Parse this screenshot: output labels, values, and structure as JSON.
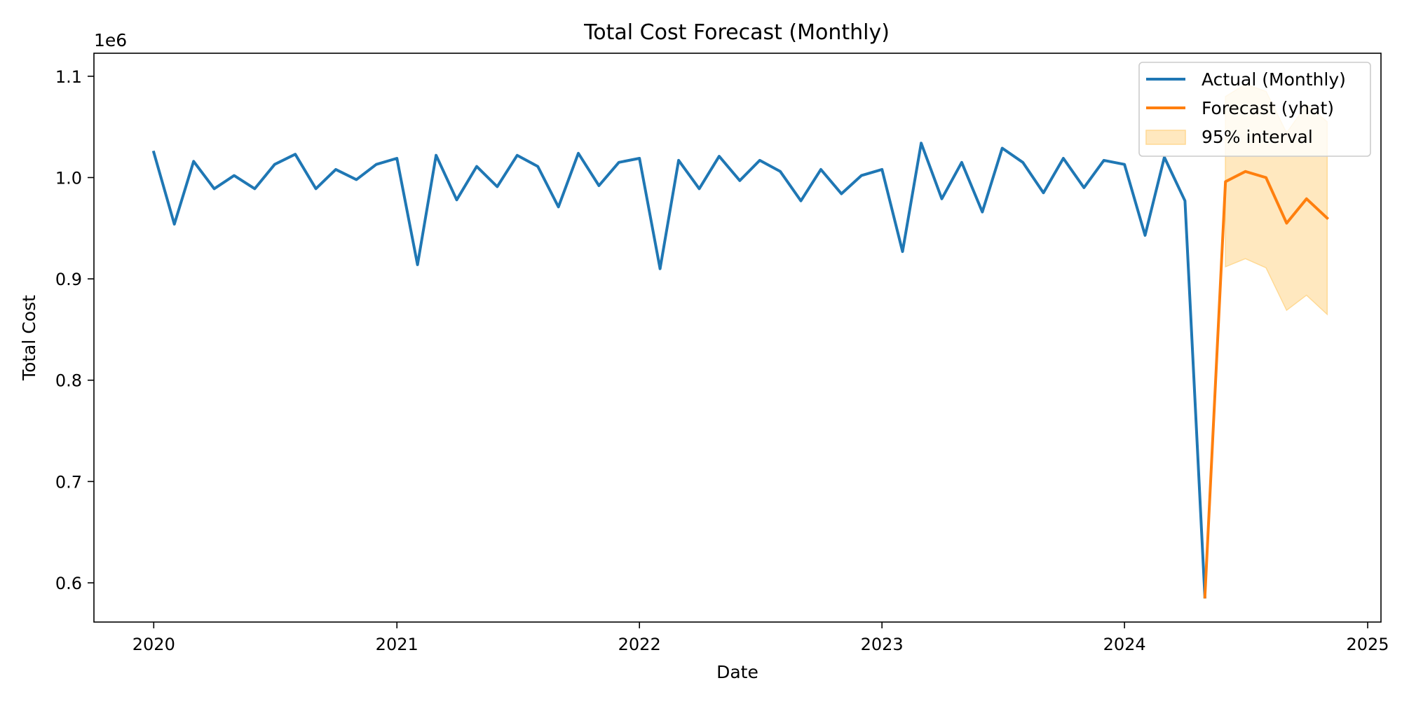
{
  "chart_data": {
    "type": "line",
    "title": "Total Cost Forecast (Monthly)",
    "xlabel": "Date",
    "ylabel": "Total Cost",
    "y_offset_label": "1e6",
    "x_axis_type": "date",
    "xlim": [
      "2019-10-03",
      "2025-01-21"
    ],
    "ylim": [
      0.5613,
      1.1227
    ],
    "y_scale_factor": 1000000,
    "x_ticks": [
      {
        "date": "2020-01-01",
        "label": "2020"
      },
      {
        "date": "2021-01-01",
        "label": "2021"
      },
      {
        "date": "2022-01-01",
        "label": "2022"
      },
      {
        "date": "2023-01-01",
        "label": "2023"
      },
      {
        "date": "2024-01-01",
        "label": "2024"
      },
      {
        "date": "2025-01-01",
        "label": "2025"
      }
    ],
    "y_ticks": [
      {
        "value": 0.6,
        "label": "0.6"
      },
      {
        "value": 0.7,
        "label": "0.7"
      },
      {
        "value": 0.8,
        "label": "0.8"
      },
      {
        "value": 0.9,
        "label": "0.9"
      },
      {
        "value": 1.0,
        "label": "1.0"
      },
      {
        "value": 1.1,
        "label": "1.1"
      }
    ],
    "grid": false,
    "legend_position": "top-right",
    "series": [
      {
        "name": "Actual (Monthly)",
        "kind": "line",
        "color": "#1f77b4",
        "x": [
          "2020-01-01",
          "2020-02-01",
          "2020-03-01",
          "2020-04-01",
          "2020-05-01",
          "2020-06-01",
          "2020-07-01",
          "2020-08-01",
          "2020-09-01",
          "2020-10-01",
          "2020-11-01",
          "2020-12-01",
          "2021-01-01",
          "2021-02-01",
          "2021-03-01",
          "2021-04-01",
          "2021-05-01",
          "2021-06-01",
          "2021-07-01",
          "2021-08-01",
          "2021-09-01",
          "2021-10-01",
          "2021-11-01",
          "2021-12-01",
          "2022-01-01",
          "2022-02-01",
          "2022-03-01",
          "2022-04-01",
          "2022-05-01",
          "2022-06-01",
          "2022-07-01",
          "2022-08-01",
          "2022-09-01",
          "2022-10-01",
          "2022-11-01",
          "2022-12-01",
          "2023-01-01",
          "2023-02-01",
          "2023-03-01",
          "2023-04-01",
          "2023-05-01",
          "2023-06-01",
          "2023-07-01",
          "2023-08-01",
          "2023-09-01",
          "2023-10-01",
          "2023-11-01",
          "2023-12-01",
          "2024-01-01",
          "2024-02-01",
          "2024-03-01",
          "2024-04-01",
          "2024-05-01"
        ],
        "y": [
          1.025,
          0.954,
          1.016,
          0.989,
          1.002,
          0.989,
          1.013,
          1.023,
          0.989,
          1.008,
          0.998,
          1.013,
          1.019,
          0.914,
          1.022,
          0.978,
          1.011,
          0.991,
          1.022,
          1.011,
          0.971,
          1.024,
          0.992,
          1.015,
          1.019,
          0.91,
          1.017,
          0.989,
          1.021,
          0.997,
          1.017,
          1.006,
          0.977,
          1.008,
          0.984,
          1.002,
          1.008,
          0.927,
          1.034,
          0.979,
          1.015,
          0.966,
          1.029,
          1.015,
          0.985,
          1.019,
          0.99,
          1.017,
          1.013,
          0.943,
          1.02,
          0.977,
          0.586
        ]
      },
      {
        "name": "Forecast (yhat)",
        "kind": "line",
        "color": "#ff7f0e",
        "x": [
          "2024-05-01",
          "2024-06-01",
          "2024-07-01",
          "2024-08-01",
          "2024-09-01",
          "2024-10-01",
          "2024-11-01"
        ],
        "y": [
          0.586,
          0.996,
          1.006,
          1.0,
          0.955,
          0.979,
          0.96
        ]
      },
      {
        "name": "95% interval",
        "kind": "band",
        "color": "#ffe8bf",
        "edge_color": "#ffd993",
        "x": [
          "2024-06-01",
          "2024-07-01",
          "2024-08-01",
          "2024-09-01",
          "2024-10-01",
          "2024-11-01"
        ],
        "lower": [
          0.912,
          0.92,
          0.911,
          0.869,
          0.884,
          0.865
        ],
        "upper": [
          1.08,
          1.092,
          1.085,
          1.044,
          1.072,
          1.055
        ]
      }
    ]
  }
}
